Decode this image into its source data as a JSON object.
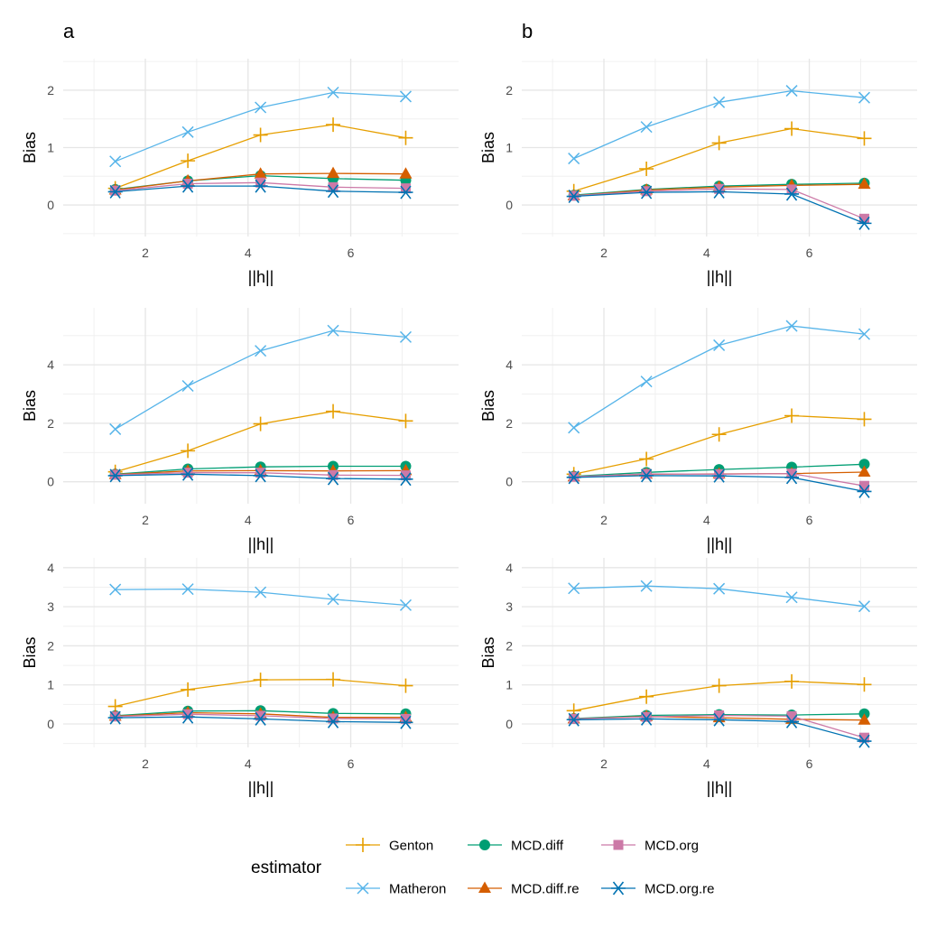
{
  "chart_data": {
    "type": "line",
    "panel_labels": [
      "a",
      "b"
    ],
    "xlabel": "||h||",
    "ylabel": "Bias",
    "x": [
      1.414,
      2.828,
      4.243,
      5.657,
      7.071
    ],
    "xlim": [
      0.4,
      8.1
    ],
    "xticks": [
      2,
      4,
      6
    ],
    "panels": [
      {
        "row": 0,
        "col": 0,
        "panel_label": "a",
        "ylim": [
          -0.55,
          2.55
        ],
        "yticks": [
          0,
          1,
          2
        ],
        "series": [
          {
            "name": "Matheron",
            "values": [
              0.76,
              1.27,
              1.7,
              1.96,
              1.89
            ]
          },
          {
            "name": "Genton",
            "values": [
              0.29,
              0.77,
              1.22,
              1.4,
              1.17
            ]
          },
          {
            "name": "MCD.diff",
            "values": [
              0.27,
              0.42,
              0.51,
              0.46,
              0.43
            ]
          },
          {
            "name": "MCD.diff.re",
            "values": [
              0.26,
              0.42,
              0.54,
              0.55,
              0.54
            ]
          },
          {
            "name": "MCD.org",
            "values": [
              0.25,
              0.37,
              0.39,
              0.31,
              0.29
            ]
          },
          {
            "name": "MCD.org.re",
            "values": [
              0.23,
              0.33,
              0.33,
              0.24,
              0.22
            ]
          }
        ]
      },
      {
        "row": 0,
        "col": 1,
        "panel_label": "b",
        "ylim": [
          -0.55,
          2.55
        ],
        "yticks": [
          0,
          1,
          2
        ],
        "series": [
          {
            "name": "Matheron",
            "values": [
              0.81,
              1.36,
              1.79,
              1.99,
              1.87
            ]
          },
          {
            "name": "Genton",
            "values": [
              0.24,
              0.63,
              1.08,
              1.33,
              1.16
            ]
          },
          {
            "name": "MCD.diff",
            "values": [
              0.17,
              0.27,
              0.33,
              0.36,
              0.38
            ]
          },
          {
            "name": "MCD.diff.re",
            "values": [
              0.16,
              0.26,
              0.31,
              0.34,
              0.36
            ]
          },
          {
            "name": "MCD.org",
            "values": [
              0.16,
              0.24,
              0.28,
              0.27,
              -0.24
            ]
          },
          {
            "name": "MCD.org.re",
            "values": [
              0.15,
              0.22,
              0.23,
              0.19,
              -0.32
            ]
          }
        ]
      },
      {
        "row": 1,
        "col": 0,
        "panel_label": "",
        "ylim": [
          -0.75,
          5.95
        ],
        "yticks": [
          0,
          2,
          4
        ],
        "series": [
          {
            "name": "Matheron",
            "values": [
              1.8,
              3.28,
              4.48,
              5.17,
              4.95
            ]
          },
          {
            "name": "Genton",
            "values": [
              0.34,
              1.06,
              1.98,
              2.41,
              2.08
            ]
          },
          {
            "name": "MCD.diff",
            "values": [
              0.26,
              0.44,
              0.51,
              0.53,
              0.53
            ]
          },
          {
            "name": "MCD.diff.re",
            "values": [
              0.25,
              0.37,
              0.38,
              0.37,
              0.38
            ]
          },
          {
            "name": "MCD.org",
            "values": [
              0.24,
              0.31,
              0.31,
              0.23,
              0.22
            ]
          },
          {
            "name": "MCD.org.re",
            "values": [
              0.21,
              0.26,
              0.21,
              0.11,
              0.09
            ]
          }
        ]
      },
      {
        "row": 1,
        "col": 1,
        "panel_label": "",
        "ylim": [
          -0.75,
          5.95
        ],
        "yticks": [
          0,
          2,
          4
        ],
        "series": [
          {
            "name": "Matheron",
            "values": [
              1.85,
              3.43,
              4.67,
              5.33,
              5.05
            ]
          },
          {
            "name": "Genton",
            "values": [
              0.26,
              0.78,
              1.62,
              2.26,
              2.14
            ]
          },
          {
            "name": "MCD.diff",
            "values": [
              0.19,
              0.32,
              0.42,
              0.5,
              0.6
            ]
          },
          {
            "name": "MCD.diff.re",
            "values": [
              0.17,
              0.26,
              0.27,
              0.28,
              0.33
            ]
          },
          {
            "name": "MCD.org",
            "values": [
              0.17,
              0.27,
              0.26,
              0.28,
              -0.14
            ]
          },
          {
            "name": "MCD.org.re",
            "values": [
              0.15,
              0.21,
              0.2,
              0.15,
              -0.33
            ]
          }
        ]
      },
      {
        "row": 2,
        "col": 0,
        "panel_label": "",
        "ylim": [
          -0.6,
          4.25
        ],
        "yticks": [
          0,
          1,
          2,
          3,
          4
        ],
        "series": [
          {
            "name": "Matheron",
            "values": [
              3.44,
              3.45,
              3.37,
              3.19,
              3.04
            ]
          },
          {
            "name": "Genton",
            "values": [
              0.45,
              0.88,
              1.13,
              1.14,
              0.98
            ]
          },
          {
            "name": "MCD.diff",
            "values": [
              0.21,
              0.33,
              0.34,
              0.27,
              0.26
            ]
          },
          {
            "name": "MCD.diff.re",
            "values": [
              0.2,
              0.29,
              0.26,
              0.17,
              0.17
            ]
          },
          {
            "name": "MCD.org",
            "values": [
              0.19,
              0.25,
              0.21,
              0.14,
              0.13
            ]
          },
          {
            "name": "MCD.org.re",
            "values": [
              0.16,
              0.18,
              0.13,
              0.06,
              0.04
            ]
          }
        ]
      },
      {
        "row": 2,
        "col": 1,
        "panel_label": "",
        "ylim": [
          -0.6,
          4.25
        ],
        "yticks": [
          0,
          1,
          2,
          3,
          4
        ],
        "series": [
          {
            "name": "Matheron",
            "values": [
              3.47,
              3.53,
              3.46,
              3.24,
              3.01
            ]
          },
          {
            "name": "Genton",
            "values": [
              0.34,
              0.7,
              0.98,
              1.09,
              1.01
            ]
          },
          {
            "name": "MCD.diff",
            "values": [
              0.14,
              0.22,
              0.24,
              0.23,
              0.26
            ]
          },
          {
            "name": "MCD.diff.re",
            "values": [
              0.13,
              0.19,
              0.16,
              0.12,
              0.1
            ]
          },
          {
            "name": "MCD.org",
            "values": [
              0.13,
              0.18,
              0.22,
              0.2,
              -0.35
            ]
          },
          {
            "name": "MCD.org.re",
            "values": [
              0.11,
              0.13,
              0.11,
              0.06,
              -0.44
            ]
          }
        ]
      }
    ],
    "legend": {
      "title": "estimator",
      "placement": "bottom",
      "entries": [
        {
          "name": "Genton",
          "color": "#E69F00",
          "shape": "plus"
        },
        {
          "name": "MCD.diff",
          "color": "#009E73",
          "shape": "circle"
        },
        {
          "name": "MCD.org",
          "color": "#CC79A7",
          "shape": "square"
        },
        {
          "name": "Matheron",
          "color": "#56B4E9",
          "shape": "cross"
        },
        {
          "name": "MCD.diff.re",
          "color": "#D55E00",
          "shape": "triangle"
        },
        {
          "name": "MCD.org.re",
          "color": "#0072B2",
          "shape": "asterisk"
        }
      ]
    }
  }
}
